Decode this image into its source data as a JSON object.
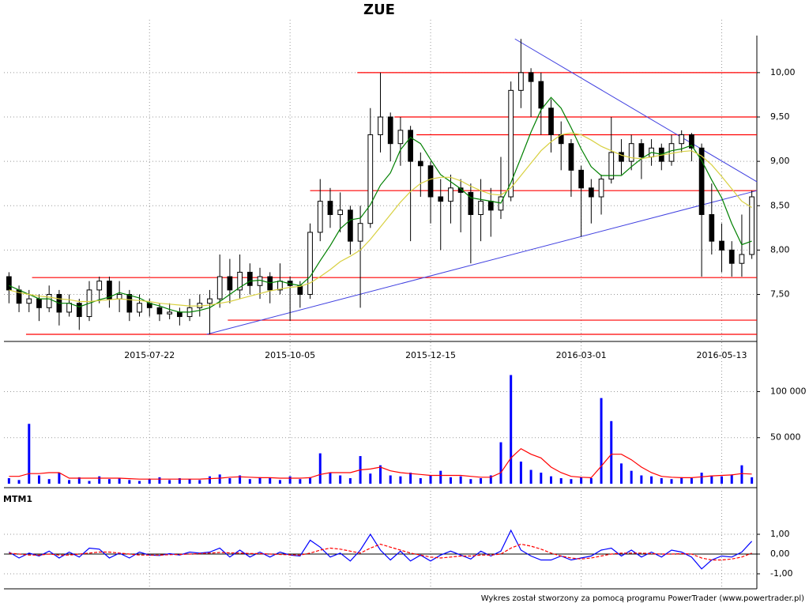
{
  "chart_data": [
    {
      "type": "candlestick",
      "title": "ZUE",
      "categories": [
        null,
        null,
        null,
        null,
        null,
        null,
        null,
        null,
        null,
        null,
        null,
        null,
        null,
        null,
        "2015-07-22",
        null,
        null,
        null,
        null,
        null,
        null,
        null,
        null,
        null,
        null,
        null,
        null,
        null,
        "2015-10-05",
        null,
        null,
        null,
        null,
        null,
        null,
        null,
        null,
        null,
        null,
        null,
        null,
        null,
        "2015-12-15",
        null,
        null,
        null,
        null,
        null,
        null,
        null,
        null,
        null,
        null,
        null,
        null,
        null,
        null,
        "2016-03-01",
        null,
        null,
        null,
        null,
        null,
        null,
        null,
        null,
        null,
        null,
        null,
        null,
        null,
        "2016-05-13",
        null,
        null,
        null
      ],
      "ohlc": [
        [
          7.7,
          7.75,
          7.4,
          7.55
        ],
        [
          7.55,
          7.6,
          7.3,
          7.4
        ],
        [
          7.4,
          7.55,
          7.3,
          7.45
        ],
        [
          7.45,
          7.5,
          7.2,
          7.35
        ],
        [
          7.35,
          7.6,
          7.3,
          7.5
        ],
        [
          7.5,
          7.55,
          7.15,
          7.3
        ],
        [
          7.3,
          7.5,
          7.25,
          7.4
        ],
        [
          7.4,
          7.45,
          7.1,
          7.25
        ],
        [
          7.25,
          7.65,
          7.2,
          7.55
        ],
        [
          7.55,
          7.7,
          7.4,
          7.65
        ],
        [
          7.65,
          7.7,
          7.35,
          7.45
        ],
        [
          7.45,
          7.65,
          7.3,
          7.5
        ],
        [
          7.5,
          7.55,
          7.2,
          7.3
        ],
        [
          7.3,
          7.5,
          7.25,
          7.4
        ],
        [
          7.4,
          7.45,
          7.25,
          7.35
        ],
        [
          7.35,
          7.4,
          7.2,
          7.28
        ],
        [
          7.28,
          7.4,
          7.22,
          7.3
        ],
        [
          7.3,
          7.35,
          7.15,
          7.25
        ],
        [
          7.25,
          7.45,
          7.2,
          7.35
        ],
        [
          7.35,
          7.5,
          7.25,
          7.4
        ],
        [
          7.4,
          7.55,
          7.05,
          7.45
        ],
        [
          7.45,
          7.95,
          7.35,
          7.7
        ],
        [
          7.7,
          7.9,
          7.4,
          7.55
        ],
        [
          7.55,
          7.95,
          7.45,
          7.75
        ],
        [
          7.75,
          7.85,
          7.5,
          7.6
        ],
        [
          7.6,
          7.8,
          7.45,
          7.7
        ],
        [
          7.7,
          7.75,
          7.4,
          7.55
        ],
        [
          7.55,
          7.85,
          7.5,
          7.65
        ],
        [
          7.65,
          7.7,
          7.2,
          7.6
        ],
        [
          7.6,
          7.65,
          7.35,
          7.5
        ],
        [
          7.5,
          8.3,
          7.45,
          8.2
        ],
        [
          8.2,
          8.8,
          8.1,
          8.55
        ],
        [
          8.55,
          8.7,
          8.25,
          8.4
        ],
        [
          8.4,
          8.65,
          8.2,
          8.45
        ],
        [
          8.45,
          8.5,
          7.95,
          8.1
        ],
        [
          8.1,
          8.5,
          7.35,
          8.3
        ],
        [
          8.3,
          9.6,
          8.25,
          9.3
        ],
        [
          9.3,
          10.0,
          9.1,
          9.5
        ],
        [
          9.5,
          9.55,
          9.0,
          9.2
        ],
        [
          9.2,
          9.5,
          8.95,
          9.35
        ],
        [
          9.35,
          9.4,
          8.1,
          9.0
        ],
        [
          9.0,
          9.1,
          8.6,
          8.95
        ],
        [
          8.95,
          9.0,
          8.3,
          8.6
        ],
        [
          8.6,
          8.8,
          8.0,
          8.55
        ],
        [
          8.55,
          8.85,
          8.3,
          8.7
        ],
        [
          8.7,
          8.8,
          8.2,
          8.65
        ],
        [
          8.65,
          8.75,
          7.85,
          8.4
        ],
        [
          8.4,
          8.8,
          8.1,
          8.55
        ],
        [
          8.55,
          8.7,
          8.15,
          8.45
        ],
        [
          8.45,
          9.05,
          8.35,
          8.6
        ],
        [
          8.6,
          9.9,
          8.55,
          9.8
        ],
        [
          9.8,
          10.38,
          9.6,
          10.0
        ],
        [
          10.0,
          10.05,
          9.5,
          9.9
        ],
        [
          9.9,
          10.0,
          9.3,
          9.6
        ],
        [
          9.6,
          9.7,
          9.1,
          9.3
        ],
        [
          9.3,
          9.45,
          8.9,
          9.2
        ],
        [
          9.2,
          9.25,
          8.6,
          8.9
        ],
        [
          8.9,
          8.95,
          8.15,
          8.7
        ],
        [
          8.7,
          8.8,
          8.3,
          8.6
        ],
        [
          8.6,
          8.85,
          8.4,
          8.8
        ],
        [
          8.8,
          9.5,
          8.75,
          9.1
        ],
        [
          9.1,
          9.25,
          8.85,
          9.0
        ],
        [
          9.0,
          9.3,
          8.9,
          9.2
        ],
        [
          9.2,
          9.25,
          8.8,
          9.05
        ],
        [
          9.05,
          9.25,
          8.95,
          9.15
        ],
        [
          9.15,
          9.2,
          8.9,
          9.0
        ],
        [
          9.0,
          9.3,
          8.95,
          9.2
        ],
        [
          9.2,
          9.35,
          9.1,
          9.3
        ],
        [
          9.3,
          9.32,
          9.0,
          9.15
        ],
        [
          9.15,
          9.2,
          7.7,
          8.4
        ],
        [
          8.4,
          8.75,
          7.95,
          8.1
        ],
        [
          8.1,
          8.3,
          7.75,
          8.0
        ],
        [
          8.0,
          8.1,
          7.7,
          7.85
        ],
        [
          7.85,
          8.4,
          7.7,
          7.95
        ],
        [
          7.95,
          8.67,
          7.9,
          8.6
        ]
      ],
      "series": [
        {
          "color": "#008000",
          "values": [
            7.6,
            7.55,
            7.5,
            7.45,
            7.45,
            7.4,
            7.4,
            7.36,
            7.4,
            7.44,
            7.47,
            7.52,
            7.49,
            7.46,
            7.4,
            7.37,
            7.33,
            7.3,
            7.3,
            7.32,
            7.35,
            7.42,
            7.5,
            7.58,
            7.65,
            7.66,
            7.63,
            7.65,
            7.62,
            7.6,
            7.7,
            7.88,
            8.05,
            8.24,
            8.34,
            8.36,
            8.51,
            8.73,
            8.87,
            9.13,
            9.27,
            9.2,
            9.02,
            8.85,
            8.77,
            8.69,
            8.59,
            8.57,
            8.55,
            8.53,
            8.76,
            9.04,
            9.33,
            9.58,
            9.72,
            9.6,
            9.38,
            9.14,
            8.94,
            8.84,
            8.84,
            8.84,
            8.94,
            9.03,
            9.1,
            9.08,
            9.12,
            9.14,
            9.18,
            9.01,
            8.79,
            8.59,
            8.3,
            8.06,
            8.1
          ]
        },
        {
          "color": "#d8d040",
          "values": [
            7.55,
            7.52,
            7.5,
            7.48,
            7.47,
            7.45,
            7.44,
            7.42,
            7.42,
            7.43,
            7.44,
            7.45,
            7.44,
            7.43,
            7.42,
            7.4,
            7.39,
            7.38,
            7.37,
            7.37,
            7.38,
            7.4,
            7.42,
            7.45,
            7.48,
            7.51,
            7.54,
            7.56,
            7.58,
            7.59,
            7.63,
            7.7,
            7.78,
            7.87,
            7.93,
            8.0,
            8.12,
            8.26,
            8.4,
            8.54,
            8.66,
            8.75,
            8.8,
            8.82,
            8.82,
            8.78,
            8.72,
            8.67,
            8.63,
            8.62,
            8.7,
            8.84,
            8.98,
            9.12,
            9.22,
            9.3,
            9.32,
            9.3,
            9.24,
            9.17,
            9.12,
            9.07,
            9.04,
            9.03,
            9.05,
            9.07,
            9.09,
            9.11,
            9.12,
            9.06,
            8.96,
            8.83,
            8.69,
            8.55,
            8.48
          ]
        }
      ],
      "hlines": [
        {
          "value": 10.0,
          "x0": 34.7
        },
        {
          "value": 9.5,
          "x0": 38.4
        },
        {
          "value": 9.3,
          "x0": 40.6
        },
        {
          "value": 8.67,
          "x0": 30.0
        },
        {
          "value": 7.69,
          "x0": 2.3
        },
        {
          "value": 7.21,
          "x0": 21.8
        },
        {
          "value": 7.05,
          "x0": 1.7
        }
      ],
      "hline_color": "#ff0000",
      "trendlines": [
        {
          "x": [
            50.4,
            74.5
          ],
          "y": [
            10.38,
            8.77
          ]
        },
        {
          "x": [
            19.7,
            74.5
          ],
          "y": [
            7.05,
            8.67
          ]
        }
      ],
      "trend_color": "#4040e0",
      "ylim": [
        7.05,
        10.4
      ],
      "yticks": [
        {
          "value": 7.5,
          "label": "7,50"
        },
        {
          "value": 8.0,
          "label": "8,00"
        },
        {
          "value": 8.5,
          "label": "8,50"
        },
        {
          "value": 9.0,
          "label": "9,00"
        },
        {
          "value": 9.5,
          "label": "9,50"
        },
        {
          "value": 10.0,
          "label": "10,00"
        }
      ],
      "grid": true
    },
    {
      "type": "bar",
      "series": [
        {
          "color": "#0000ff",
          "values": [
            6000,
            4000,
            65000,
            9000,
            5000,
            12000,
            4000,
            7000,
            3000,
            8000,
            5000,
            6000,
            4000,
            3000,
            5000,
            7000,
            4000,
            6000,
            5000,
            4000,
            8000,
            10000,
            6000,
            9000,
            5000,
            7000,
            6000,
            4000,
            8000,
            5000,
            7000,
            33000,
            12000,
            9000,
            6000,
            30000,
            11000,
            20000,
            9000,
            8000,
            12000,
            6000,
            9000,
            14000,
            7000,
            8000,
            5000,
            6000,
            9000,
            45000,
            118000,
            24000,
            15000,
            12000,
            8000,
            6000,
            5000,
            7000,
            6000,
            93000,
            68000,
            22000,
            14000,
            9000,
            8000,
            6000,
            5000,
            7000,
            6000,
            12000,
            9000,
            8000,
            10000,
            20000,
            7000
          ]
        },
        {
          "type": "line",
          "color": "#ff0000",
          "values": [
            8000,
            8000,
            11000,
            11000,
            12000,
            12000,
            6000,
            6000,
            6000,
            6000,
            6000,
            6000,
            5500,
            5000,
            5000,
            5000,
            5000,
            5000,
            5000,
            5000,
            5500,
            6000,
            7000,
            7500,
            7000,
            6500,
            6500,
            6000,
            6000,
            6000,
            6500,
            10000,
            12000,
            12000,
            12000,
            15000,
            16000,
            18000,
            14000,
            12000,
            11000,
            10000,
            9000,
            9000,
            9000,
            9000,
            8000,
            7000,
            7000,
            12000,
            28000,
            38000,
            32000,
            28000,
            18000,
            12000,
            8000,
            7000,
            6500,
            19000,
            32000,
            32000,
            26000,
            18000,
            12000,
            8000,
            7000,
            6500,
            6500,
            7500,
            8500,
            9000,
            9500,
            11000,
            10500
          ]
        }
      ],
      "ylim": [
        0,
        115000
      ],
      "yticks": [
        {
          "value": 50000,
          "label": "50 000"
        },
        {
          "value": 100000,
          "label": "100 000"
        }
      ],
      "grid": true
    },
    {
      "type": "line",
      "title": "MTM1",
      "series": [
        {
          "color": "#0000ff",
          "values": [
            0.1,
            -0.2,
            0.05,
            -0.1,
            0.15,
            -0.2,
            0.1,
            -0.15,
            0.3,
            0.25,
            -0.2,
            0.05,
            -0.2,
            0.1,
            -0.05,
            -0.07,
            0.02,
            -0.05,
            0.1,
            0.05,
            0.1,
            0.3,
            -0.15,
            0.2,
            -0.15,
            0.1,
            -0.15,
            0.1,
            -0.05,
            -0.1,
            0.7,
            0.35,
            -0.15,
            0.05,
            -0.35,
            0.2,
            1.0,
            0.2,
            -0.3,
            0.15,
            -0.35,
            -0.05,
            -0.35,
            -0.05,
            0.15,
            -0.05,
            -0.25,
            0.15,
            -0.1,
            0.15,
            1.2,
            0.2,
            -0.1,
            -0.3,
            -0.3,
            -0.1,
            -0.3,
            -0.2,
            -0.1,
            0.2,
            0.3,
            -0.1,
            0.2,
            -0.15,
            0.1,
            -0.15,
            0.2,
            0.1,
            -0.15,
            -0.75,
            -0.3,
            -0.1,
            -0.15,
            0.1,
            0.65
          ]
        },
        {
          "color": "#ff0000",
          "dash": true,
          "values": [
            0.05,
            0.0,
            -0.05,
            -0.05,
            0.0,
            -0.05,
            -0.05,
            0.0,
            0.05,
            0.1,
            0.1,
            0.05,
            0.0,
            -0.05,
            -0.05,
            -0.05,
            -0.03,
            -0.02,
            0.0,
            0.02,
            0.05,
            0.08,
            0.06,
            0.05,
            0.03,
            0.02,
            0.0,
            -0.02,
            -0.04,
            -0.05,
            0.05,
            0.2,
            0.3,
            0.25,
            0.15,
            0.05,
            0.3,
            0.5,
            0.35,
            0.2,
            0.05,
            -0.05,
            -0.15,
            -0.2,
            -0.15,
            -0.1,
            -0.1,
            -0.05,
            -0.05,
            0.0,
            0.3,
            0.5,
            0.4,
            0.25,
            0.05,
            -0.1,
            -0.2,
            -0.25,
            -0.2,
            -0.1,
            0.0,
            0.05,
            0.05,
            0.05,
            0.02,
            0.0,
            0.0,
            0.02,
            0.0,
            -0.2,
            -0.3,
            -0.3,
            -0.25,
            -0.15,
            0.05
          ]
        }
      ],
      "ylim": [
        -1.64,
        1.56
      ],
      "yticks": [
        {
          "value": -1,
          "label": "-1,00"
        },
        {
          "value": 0,
          "label": "0,00"
        },
        {
          "value": 1,
          "label": "1,00"
        }
      ],
      "zero_line": true,
      "grid": true
    }
  ],
  "footer": "Wykres został stworzony za pomocą programu PowerTrader (www.powertrader.pl)"
}
